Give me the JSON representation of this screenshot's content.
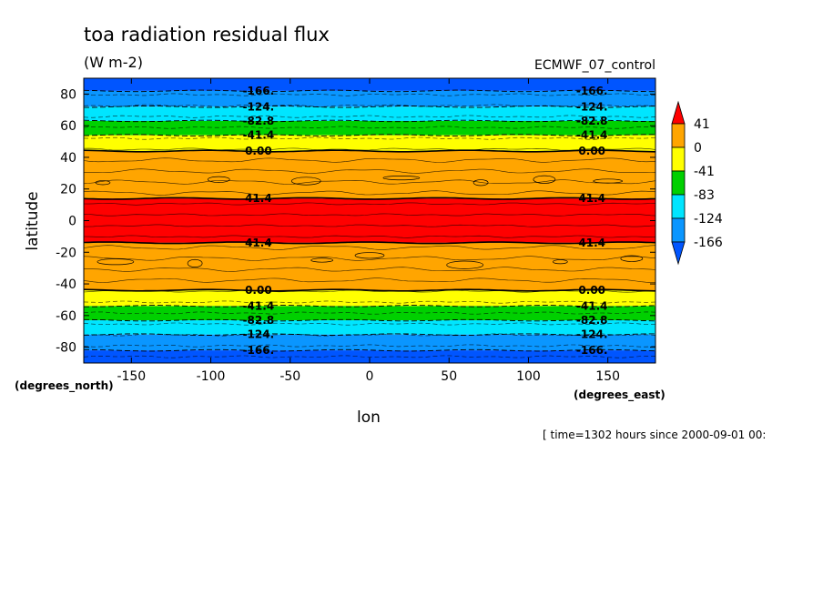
{
  "chart_data": {
    "type": "heatmap",
    "title": "toa radiation residual flux",
    "units": "(W m-2)",
    "experiment": "ECMWF_07_control",
    "xlabel": "lon",
    "ylabel": "latitude",
    "x_units": "(degrees_east)",
    "y_units": "(degrees_north)",
    "xlim": [
      -180,
      180
    ],
    "ylim": [
      -90,
      90
    ],
    "x_ticks": [
      "-150",
      "-100",
      "-50",
      "0",
      "50",
      "100",
      "150"
    ],
    "y_ticks": [
      "-80",
      "-60",
      "-40",
      "-20",
      "0",
      "20",
      "40",
      "60",
      "80"
    ],
    "x_tick_values": [
      -150,
      -100,
      -50,
      0,
      50,
      100,
      150
    ],
    "y_tick_values": [
      -80,
      -60,
      -40,
      -20,
      0,
      20,
      40,
      60,
      80
    ],
    "time_note": "[ time=1302 hours since 2000-09-01 00:",
    "colorbar": {
      "labels": [
        "41",
        "0",
        "-41",
        "-83",
        "-124",
        "-166"
      ],
      "levels": [
        41.4,
        0,
        -41.4,
        -82.8,
        -124,
        -166
      ],
      "colors": [
        "#ff0000",
        "#ffa500",
        "#ffff00",
        "#00d000",
        "#00e5ff",
        "#0a96ff",
        "#0055ff"
      ]
    },
    "bands": [
      {
        "lat_from": 90,
        "lat_to": 82,
        "color": "#0055ff"
      },
      {
        "lat_from": 82,
        "lat_to": 72,
        "color": "#0a96ff"
      },
      {
        "lat_from": 72,
        "lat_to": 63,
        "color": "#00e5ff"
      },
      {
        "lat_from": 63,
        "lat_to": 54,
        "color": "#00d000"
      },
      {
        "lat_from": 54,
        "lat_to": 44,
        "color": "#ffff00"
      },
      {
        "lat_from": 44,
        "lat_to": 14,
        "color": "#ffa500"
      },
      {
        "lat_from": 14,
        "lat_to": -14,
        "color": "#ff0000"
      },
      {
        "lat_from": -14,
        "lat_to": -44,
        "color": "#ffa500"
      },
      {
        "lat_from": -44,
        "lat_to": -54,
        "color": "#ffff00"
      },
      {
        "lat_from": -54,
        "lat_to": -63,
        "color": "#00d000"
      },
      {
        "lat_from": -63,
        "lat_to": -72,
        "color": "#00e5ff"
      },
      {
        "lat_from": -72,
        "lat_to": -82,
        "color": "#0a96ff"
      },
      {
        "lat_from": -82,
        "lat_to": -90,
        "color": "#0055ff"
      }
    ],
    "contours": [
      {
        "lat": 82,
        "label": "-166.",
        "dashed": true
      },
      {
        "lat": 72,
        "label": "-124.",
        "dashed": true
      },
      {
        "lat": 63,
        "label": "-82.8",
        "dashed": true
      },
      {
        "lat": 54,
        "label": "-41.4",
        "dashed": true
      },
      {
        "lat": 44,
        "label": "0.00",
        "dashed": false
      },
      {
        "lat": 14,
        "label": "41.4",
        "dashed": false
      },
      {
        "lat": -14,
        "label": "41.4",
        "dashed": false
      },
      {
        "lat": -44,
        "label": "0.00",
        "dashed": false
      },
      {
        "lat": -54,
        "label": "-41.4",
        "dashed": true
      },
      {
        "lat": -63,
        "label": "-82.8",
        "dashed": true
      },
      {
        "lat": -72,
        "label": "-124.",
        "dashed": true
      },
      {
        "lat": -82,
        "label": "-166.",
        "dashed": true
      }
    ],
    "contour_label_lons": [
      -70,
      140
    ],
    "interval": 41.4
  }
}
